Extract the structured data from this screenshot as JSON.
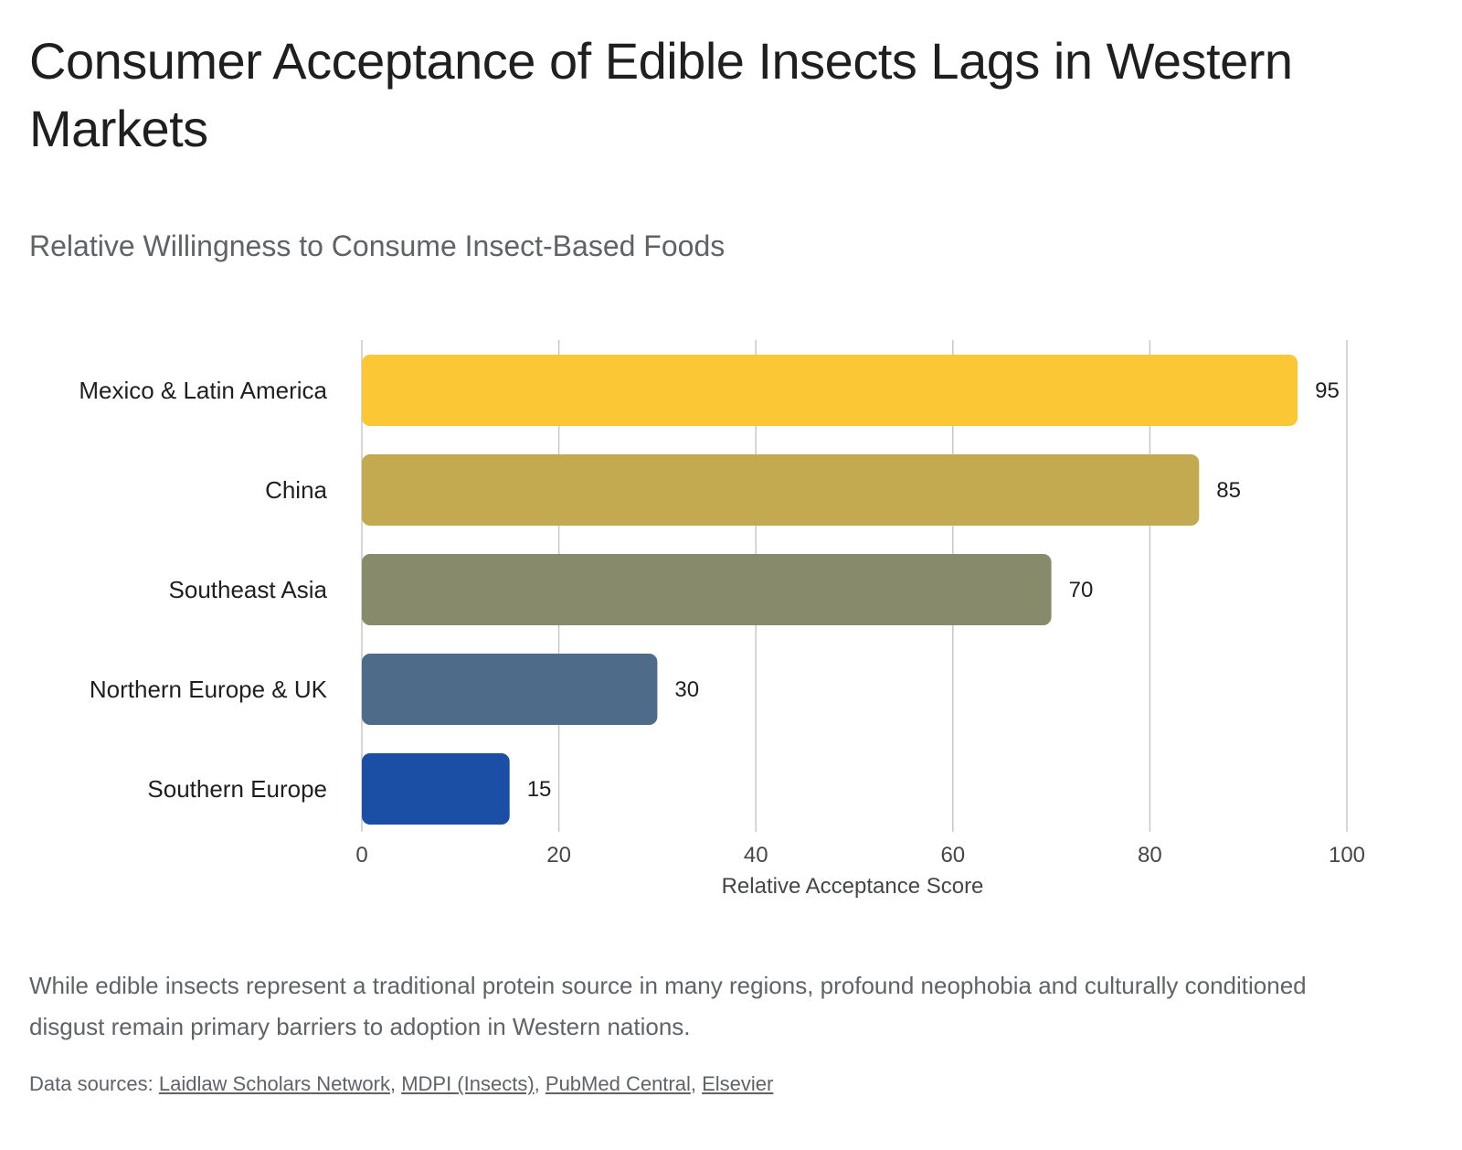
{
  "title": "Consumer Acceptance of Edible Insects Lags in Western Markets",
  "description": "While edible insects represent a traditional protein source in many regions, profound neophobia and culturally conditioned disgust remain primary barriers to adoption in Western nations.",
  "sources": {
    "prefix": "Data sources: ",
    "links": [
      "Laidlaw Scholars Network",
      "MDPI (Insects)",
      "PubMed Central",
      "Elsevier"
    ]
  },
  "chart_data": {
    "type": "bar",
    "orientation": "horizontal",
    "title": "Relative Willingness to Consume Insect-Based Foods",
    "xlabel": "Relative Acceptance Score",
    "ylabel": "",
    "categories": [
      "Mexico & Latin America",
      "China",
      "Southeast Asia",
      "Northern Europe & UK",
      "Southern Europe"
    ],
    "values": [
      95,
      85,
      70,
      30,
      15
    ],
    "colors": [
      "#fbc735",
      "#c3aa51",
      "#888b6b",
      "#4f6b8a",
      "#1a4fa5"
    ],
    "xlim": [
      0,
      100
    ],
    "xticks": [
      0,
      20,
      40,
      60,
      80,
      100
    ],
    "grid": true,
    "data_labels": true
  }
}
